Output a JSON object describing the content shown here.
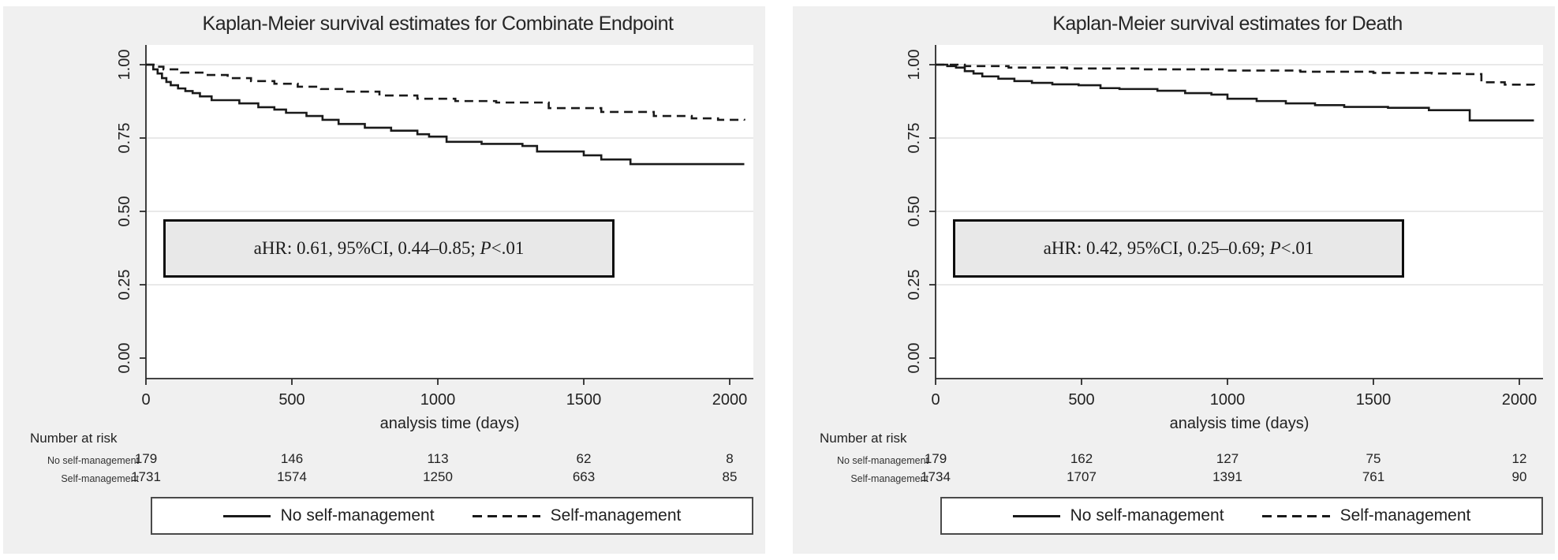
{
  "accent_colors": {
    "page_bg": "#ffffff",
    "panel_bg": "#f0f0f0",
    "plot_bg": "#ffffff",
    "gridline": "#e2e2e2",
    "axis": "#2a2a2a",
    "curve": "#1a1a1a",
    "annotation_bg": "#e8e8e8",
    "annotation_border": "#0d0d0d"
  },
  "chart_data": [
    {
      "type": "line",
      "title": "Kaplan-Meier survival estimates for Combinate Endpoint",
      "xlabel": "analysis time (days)",
      "ylabel": "",
      "xlim": [
        0,
        2080
      ],
      "ylim": [
        0.0,
        1.07
      ],
      "grid": true,
      "legend_position": "bottom",
      "x_ticks": [
        0,
        500,
        1000,
        1500,
        2000
      ],
      "y_ticks": [
        0.0,
        0.25,
        0.5,
        0.75,
        1.0
      ],
      "y_tick_labels": [
        "0.00",
        "0.25",
        "0.50",
        "0.75",
        "1.00"
      ],
      "annotation": {
        "prefix": "aHR: 0.61, 95%CI, 0.44–0.85; ",
        "p": "P",
        "suffix": "<.01"
      },
      "legend": [
        "No self-management",
        "Self-management"
      ],
      "series": [
        {
          "name": "No self-management",
          "style": "solid",
          "x": [
            0,
            25,
            40,
            55,
            70,
            85,
            110,
            135,
            160,
            185,
            225,
            320,
            385,
            440,
            480,
            550,
            605,
            660,
            750,
            840,
            930,
            970,
            1030,
            1150,
            1290,
            1340,
            1500,
            1560,
            1660,
            2050
          ],
          "y": [
            1.0,
            0.984,
            0.97,
            0.954,
            0.941,
            0.93,
            0.919,
            0.91,
            0.903,
            0.892,
            0.879,
            0.868,
            0.855,
            0.847,
            0.836,
            0.825,
            0.812,
            0.798,
            0.785,
            0.775,
            0.763,
            0.755,
            0.737,
            0.73,
            0.723,
            0.704,
            0.691,
            0.677,
            0.661,
            0.661
          ]
        },
        {
          "name": "Self-management",
          "style": "dashed",
          "x": [
            0,
            30,
            60,
            120,
            200,
            280,
            360,
            440,
            520,
            600,
            690,
            800,
            930,
            1060,
            1200,
            1380,
            1560,
            1740,
            1870,
            1960,
            2050
          ],
          "y": [
            1.0,
            0.993,
            0.984,
            0.973,
            0.965,
            0.954,
            0.944,
            0.935,
            0.925,
            0.917,
            0.908,
            0.895,
            0.884,
            0.876,
            0.871,
            0.852,
            0.839,
            0.825,
            0.817,
            0.812,
            0.81
          ]
        }
      ],
      "at_risk": {
        "header": "Number at risk",
        "rows": [
          {
            "label": "No self-management",
            "values": [
              "179",
              "146",
              "113",
              "62",
              "8"
            ]
          },
          {
            "label": "Self-management",
            "values": [
              "1731",
              "1574",
              "1250",
              "663",
              "85"
            ]
          }
        ]
      }
    },
    {
      "type": "line",
      "title": "Kaplan-Meier survival estimates for Death",
      "xlabel": "analysis time (days)",
      "ylabel": "",
      "xlim": [
        0,
        2080
      ],
      "ylim": [
        0.0,
        1.07
      ],
      "grid": true,
      "legend_position": "bottom",
      "x_ticks": [
        0,
        500,
        1000,
        1500,
        2000
      ],
      "y_ticks": [
        0.0,
        0.25,
        0.5,
        0.75,
        1.0
      ],
      "y_tick_labels": [
        "0.00",
        "0.25",
        "0.50",
        "0.75",
        "1.00"
      ],
      "annotation": {
        "prefix": "aHR: 0.42, 95%CI, 0.25–0.69; ",
        "p": "P",
        "suffix": "<.01"
      },
      "legend": [
        "No self-management",
        "Self-management"
      ],
      "series": [
        {
          "name": "No self-management",
          "style": "solid",
          "x": [
            0,
            40,
            70,
            100,
            130,
            160,
            215,
            270,
            330,
            400,
            490,
            565,
            630,
            760,
            855,
            945,
            1000,
            1100,
            1200,
            1300,
            1400,
            1550,
            1690,
            1830,
            2050
          ],
          "y": [
            1.0,
            0.995,
            0.99,
            0.978,
            0.97,
            0.96,
            0.952,
            0.944,
            0.938,
            0.933,
            0.93,
            0.92,
            0.917,
            0.911,
            0.903,
            0.898,
            0.884,
            0.876,
            0.868,
            0.862,
            0.856,
            0.853,
            0.845,
            0.81,
            0.81
          ]
        },
        {
          "name": "Self-management",
          "style": "dashed",
          "x": [
            0,
            100,
            250,
            450,
            700,
            1000,
            1250,
            1500,
            1700,
            1815,
            1870,
            1950,
            2050
          ],
          "y": [
            1.0,
            0.995,
            0.99,
            0.987,
            0.984,
            0.98,
            0.976,
            0.972,
            0.97,
            0.968,
            0.94,
            0.932,
            0.93
          ]
        }
      ],
      "at_risk": {
        "header": "Number at risk",
        "rows": [
          {
            "label": "No self-management",
            "values": [
              "179",
              "162",
              "127",
              "75",
              "12"
            ]
          },
          {
            "label": "Self-management",
            "values": [
              "1734",
              "1707",
              "1391",
              "761",
              "90"
            ]
          }
        ]
      }
    }
  ]
}
